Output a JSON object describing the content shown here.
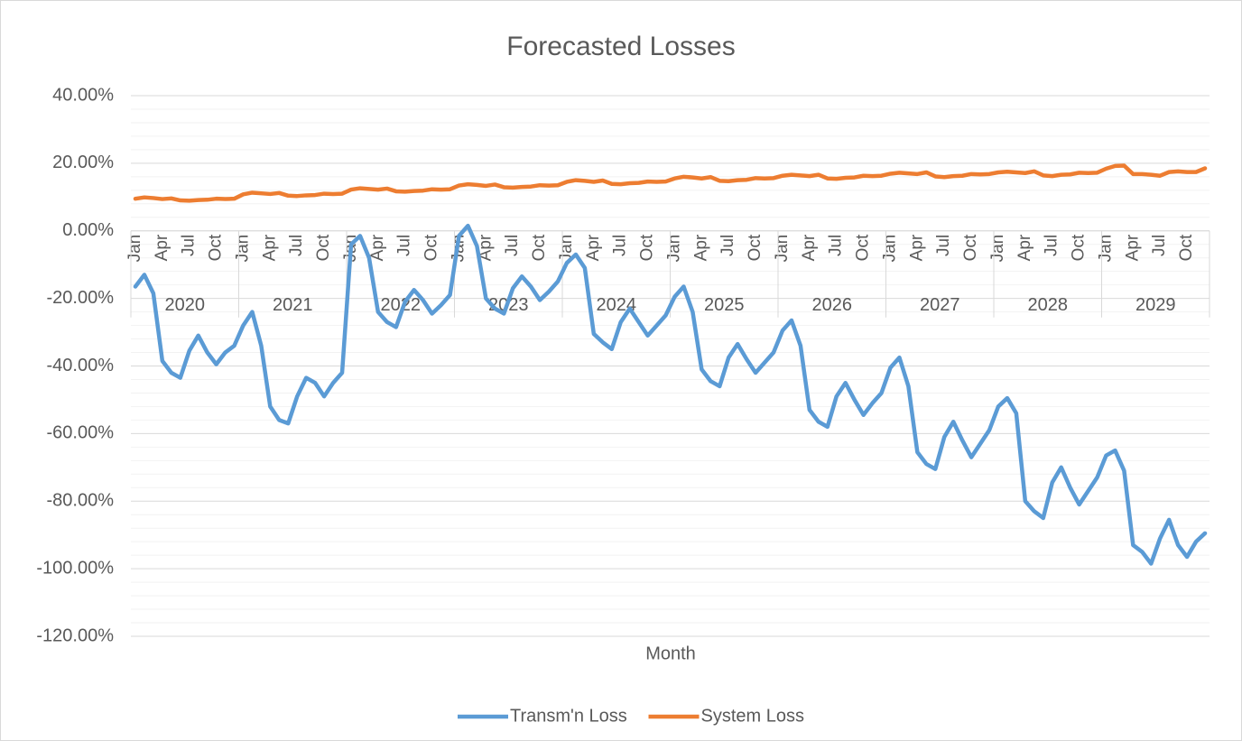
{
  "chart_data": {
    "type": "line",
    "title": "Forecasted Losses",
    "x_label": "Month",
    "categories": [
      "Jan",
      null,
      null,
      "Apr",
      null,
      null,
      "Jul",
      null,
      null,
      "Oct",
      null,
      null,
      "Jan",
      null,
      null,
      "Apr",
      null,
      null,
      "Jul",
      null,
      null,
      "Oct",
      null,
      null,
      "Jan",
      null,
      null,
      "Apr",
      null,
      null,
      "Jul",
      null,
      null,
      "Oct",
      null,
      null,
      "Jan",
      null,
      null,
      "Apr",
      null,
      null,
      "Jul",
      null,
      null,
      "Oct",
      null,
      null,
      "Jan",
      null,
      null,
      "Apr",
      null,
      null,
      "Jul",
      null,
      null,
      "Oct",
      null,
      null,
      "Jan",
      null,
      null,
      "Apr",
      null,
      null,
      "Jul",
      null,
      null,
      "Oct",
      null,
      null,
      "Jan",
      null,
      null,
      "Apr",
      null,
      null,
      "Jul",
      null,
      null,
      "Oct",
      null,
      null,
      "Jan",
      null,
      null,
      "Apr",
      null,
      null,
      "Jul",
      null,
      null,
      "Oct",
      null,
      null,
      "Jan",
      null,
      null,
      "Apr",
      null,
      null,
      "Jul",
      null,
      null,
      "Oct",
      null,
      null,
      "Jan",
      null,
      null,
      "Apr",
      null,
      null,
      "Jul",
      null,
      null,
      "Oct",
      null,
      null
    ],
    "category_groups": [
      "2020",
      "2021",
      "2022",
      "2023",
      "2024",
      "2025",
      "2026",
      "2027",
      "2028",
      "2029"
    ],
    "series": [
      {
        "name": "Transm'n Loss",
        "color": "#5b9bd5",
        "values": [
          -16.5,
          -13,
          -18.5,
          -38.5,
          -42,
          -43.5,
          -35.5,
          -31,
          -36,
          -39.5,
          -36,
          -34,
          -28,
          -24,
          -34,
          -52,
          -56,
          -57,
          -49,
          -43.5,
          -45,
          -49,
          -45,
          -42,
          -4,
          -1.5,
          -8,
          -24,
          -27,
          -28.5,
          -21,
          -17.5,
          -20.5,
          -24.5,
          -22,
          -19,
          -1.5,
          1.5,
          -4.5,
          -20,
          -23,
          -24.5,
          -17,
          -13.5,
          -16.5,
          -20.5,
          -18,
          -15,
          -9.5,
          -7,
          -11,
          -30.5,
          -33,
          -35,
          -27,
          -23,
          -27,
          -31,
          -28,
          -25,
          -19.5,
          -16.5,
          -24,
          -41,
          -44.5,
          -46,
          -37.5,
          -33.5,
          -38,
          -42,
          -39,
          -36,
          -29.5,
          -26.5,
          -34,
          -53,
          -56.5,
          -58,
          -49,
          -45,
          -50,
          -54.5,
          -51,
          -48,
          -40.5,
          -37.5,
          -46,
          -65.5,
          -69,
          -70.5,
          -61,
          -56.5,
          -62,
          -67,
          -63,
          -59,
          -52,
          -49.5,
          -54,
          -80,
          -83,
          -85,
          -74.5,
          -70,
          -76,
          -81,
          -77,
          -73,
          -66.5,
          -65,
          -71,
          -93,
          -95,
          -98.5,
          -91,
          -85.5,
          -93,
          -96.5,
          -92,
          -89.5
        ]
      },
      {
        "name": "System Loss",
        "color": "#ed7d31",
        "values": [
          9.5,
          9.9,
          9.7,
          9.4,
          9.6,
          9.0,
          8.9,
          9.1,
          9.2,
          9.5,
          9.4,
          9.5,
          10.8,
          11.3,
          11.1,
          10.9,
          11.2,
          10.4,
          10.3,
          10.5,
          10.6,
          11.0,
          10.9,
          11.0,
          12.2,
          12.6,
          12.4,
          12.2,
          12.5,
          11.7,
          11.6,
          11.8,
          11.9,
          12.3,
          12.2,
          12.3,
          13.4,
          13.8,
          13.6,
          13.3,
          13.7,
          12.9,
          12.8,
          13.0,
          13.1,
          13.5,
          13.4,
          13.5,
          14.5,
          15.0,
          14.8,
          14.5,
          14.9,
          13.9,
          13.8,
          14.1,
          14.2,
          14.6,
          14.5,
          14.6,
          15.5,
          16.0,
          15.8,
          15.5,
          15.9,
          14.8,
          14.7,
          15.0,
          15.1,
          15.6,
          15.5,
          15.6,
          16.3,
          16.6,
          16.4,
          16.2,
          16.6,
          15.5,
          15.4,
          15.7,
          15.8,
          16.3,
          16.2,
          16.3,
          16.9,
          17.2,
          17.0,
          16.8,
          17.3,
          16.1,
          15.9,
          16.2,
          16.3,
          16.8,
          16.7,
          16.8,
          17.3,
          17.5,
          17.3,
          17.1,
          17.6,
          16.4,
          16.2,
          16.6,
          16.7,
          17.2,
          17.1,
          17.2,
          18.4,
          19.2,
          19.3,
          16.8,
          16.8,
          16.6,
          16.3,
          17.4,
          17.6,
          17.4,
          17.4,
          18.5
        ]
      }
    ],
    "ylim": [
      -120,
      40
    ],
    "yticks": [
      {
        "value": -120,
        "label": "-120.00%"
      },
      {
        "value": -100,
        "label": "-100.00%"
      },
      {
        "value": -80,
        "label": "-80.00%"
      },
      {
        "value": -60,
        "label": "-60.00%"
      },
      {
        "value": -40,
        "label": "-40.00%"
      },
      {
        "value": -20,
        "label": "-20.00%"
      },
      {
        "value": 0,
        "label": "0.00%"
      },
      {
        "value": 20,
        "label": "20.00%"
      },
      {
        "value": 40,
        "label": "40.00%"
      }
    ],
    "grid": true,
    "minor_grid": true,
    "legend": "bottom"
  }
}
